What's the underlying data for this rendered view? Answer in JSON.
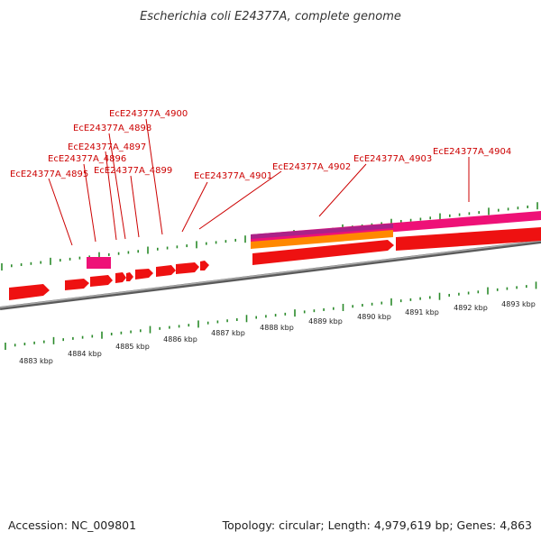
{
  "title": "Escherichia coli E24377A, complete genome",
  "accession": "Accession: NC_009801",
  "summary": "Topology: circular; Length: 4,979,619 bp; Genes: 4,863",
  "gene_labels": [
    "EcE24377A_4895",
    "EcE24377A_4896",
    "EcE24377A_4897",
    "EcE24377A_4898",
    "EcE24377A_4899",
    "EcE24377A_4900",
    "EcE24377A_4901",
    "EcE24377A_4902",
    "EcE24377A_4903",
    "EcE24377A_4904"
  ],
  "ruler_labels": [
    "4883 kbp",
    "4884 kbp",
    "4885 kbp",
    "4886 kbp",
    "4887 kbp",
    "4888 kbp",
    "4889 kbp",
    "4890 kbp",
    "4891 kbp",
    "4892 kbp",
    "4893 kbp"
  ],
  "colors": {
    "gene": "#ee1111",
    "gene_dark": "#bb0000",
    "rna_pink": "#ee1177",
    "rna_magenta": "#cc2299",
    "orange": "#ff8800",
    "tick": "#2a8a2a",
    "leader": "#cc0000",
    "backbone": "#8a8a8a"
  }
}
